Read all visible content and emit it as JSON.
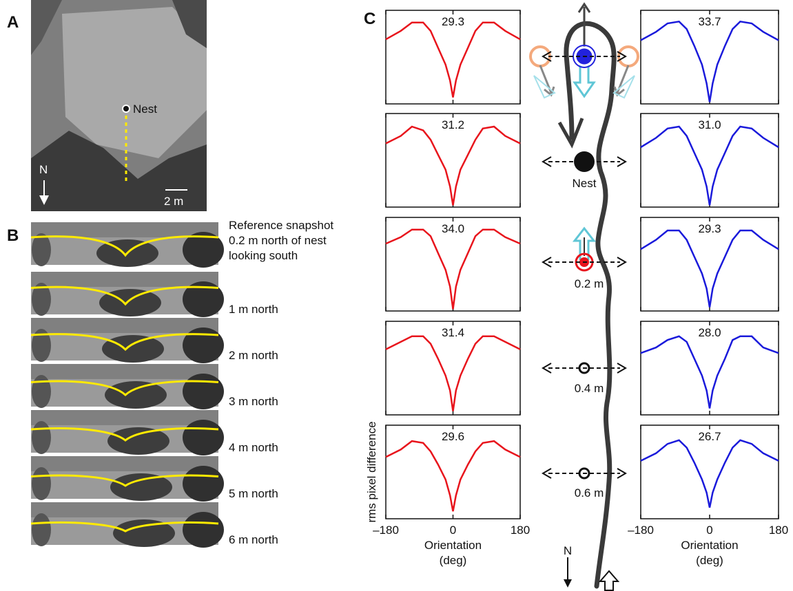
{
  "panel_a": {
    "label": "A",
    "nest": "Nest",
    "north": "N",
    "scale": "2 m"
  },
  "panel_b": {
    "label": "B",
    "captions": [
      [
        "Reference snapshot",
        "0.2 m north of nest",
        "looking south"
      ],
      [
        "1 m north"
      ],
      [
        "2 m north"
      ],
      [
        "3 m north"
      ],
      [
        "4 m north"
      ],
      [
        "5 m north"
      ],
      [
        "6 m north"
      ]
    ]
  },
  "panel_c": {
    "label": "C",
    "y_label": "rms pixel difference",
    "x_label": [
      "Orientation",
      "(deg)"
    ],
    "xlim": [
      -180,
      180
    ],
    "xticks": [
      {
        "value": -180,
        "label": "–180"
      },
      0,
      180
    ],
    "ylim": [
      0,
      1
    ],
    "x": [
      -180,
      -140,
      -110,
      -80,
      -60,
      -40,
      -20,
      -8,
      0,
      8,
      20,
      40,
      60,
      80,
      110,
      140,
      180
    ],
    "left": {
      "color": "#e8141c",
      "plots": [
        {
          "peak": 29.3,
          "peak_label": "29.3",
          "values": [
            0.69,
            0.78,
            0.87,
            0.87,
            0.78,
            0.6,
            0.42,
            0.25,
            0.07,
            0.25,
            0.42,
            0.6,
            0.78,
            0.87,
            0.87,
            0.78,
            0.69
          ]
        },
        {
          "peak": 31.2,
          "peak_label": "31.2",
          "values": [
            0.68,
            0.76,
            0.86,
            0.82,
            0.72,
            0.56,
            0.4,
            0.22,
            0.02,
            0.22,
            0.4,
            0.56,
            0.72,
            0.84,
            0.86,
            0.76,
            0.68
          ]
        },
        {
          "peak": 34.0,
          "peak_label": "34.0",
          "values": [
            0.72,
            0.79,
            0.87,
            0.87,
            0.8,
            0.62,
            0.44,
            0.26,
            0.02,
            0.26,
            0.44,
            0.62,
            0.8,
            0.87,
            0.87,
            0.79,
            0.72
          ]
        },
        {
          "peak": 31.4,
          "peak_label": "31.4",
          "values": [
            0.7,
            0.78,
            0.84,
            0.84,
            0.76,
            0.6,
            0.42,
            0.26,
            0.04,
            0.26,
            0.42,
            0.6,
            0.76,
            0.84,
            0.84,
            0.78,
            0.7
          ]
        },
        {
          "peak": 29.6,
          "peak_label": "29.6",
          "values": [
            0.66,
            0.74,
            0.83,
            0.81,
            0.72,
            0.58,
            0.42,
            0.25,
            0.08,
            0.25,
            0.42,
            0.58,
            0.72,
            0.81,
            0.83,
            0.74,
            0.66
          ]
        }
      ]
    },
    "right": {
      "color": "#1a1adb",
      "plots": [
        {
          "peak": 33.7,
          "peak_label": "33.7",
          "values": [
            0.68,
            0.77,
            0.86,
            0.88,
            0.8,
            0.62,
            0.42,
            0.22,
            0.02,
            0.22,
            0.42,
            0.62,
            0.8,
            0.88,
            0.86,
            0.77,
            0.68
          ]
        },
        {
          "peak": 31.0,
          "peak_label": "31.0",
          "values": [
            0.64,
            0.74,
            0.84,
            0.86,
            0.76,
            0.58,
            0.4,
            0.22,
            0.02,
            0.22,
            0.4,
            0.58,
            0.76,
            0.86,
            0.84,
            0.74,
            0.64
          ]
        },
        {
          "peak": 29.3,
          "peak_label": "29.3",
          "values": [
            0.66,
            0.76,
            0.86,
            0.86,
            0.76,
            0.58,
            0.4,
            0.24,
            0.04,
            0.24,
            0.4,
            0.58,
            0.76,
            0.86,
            0.86,
            0.76,
            0.66
          ]
        },
        {
          "peak": 28.0,
          "peak_label": "28.0",
          "values": [
            0.66,
            0.72,
            0.8,
            0.84,
            0.78,
            0.6,
            0.42,
            0.26,
            0.07,
            0.26,
            0.42,
            0.6,
            0.8,
            0.84,
            0.84,
            0.72,
            0.66
          ]
        },
        {
          "peak": 26.7,
          "peak_label": "26.7",
          "values": [
            0.62,
            0.7,
            0.8,
            0.84,
            0.76,
            0.6,
            0.42,
            0.28,
            0.12,
            0.28,
            0.42,
            0.6,
            0.76,
            0.84,
            0.8,
            0.7,
            0.62
          ]
        }
      ]
    },
    "positions": [
      "Nest",
      "0.2 m",
      "0.4 m",
      "0.6 m"
    ],
    "north": "N"
  }
}
